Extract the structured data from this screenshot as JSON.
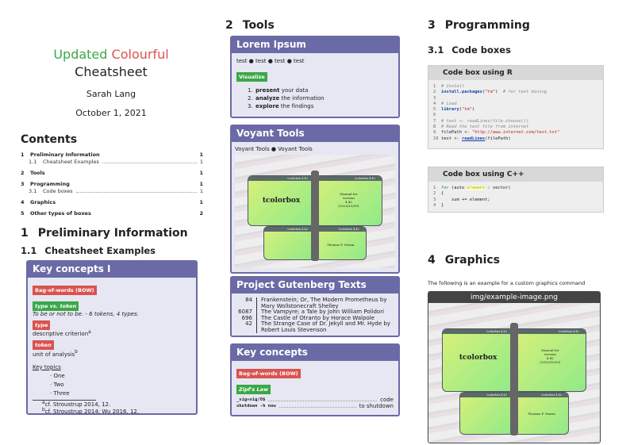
{
  "title": {
    "word1": "Updated",
    "word2": "Colourful",
    "line2": "Cheatsheet",
    "author": "Sarah Lang",
    "date": "October 1, 2021",
    "color1": "#3aa847",
    "color2": "#d9534f"
  },
  "contents": {
    "heading": "Contents",
    "entries": [
      {
        "num": "1",
        "label": "Preliminary Information",
        "page": "1",
        "bold": true
      },
      {
        "num": "1.1",
        "label": "Cheatsheet Examples",
        "page": "1",
        "bold": false
      },
      {
        "num": "2",
        "label": "Tools",
        "page": "1",
        "bold": true
      },
      {
        "num": "3",
        "label": "Programming",
        "page": "1",
        "bold": true
      },
      {
        "num": "3.1",
        "label": "Code boxes",
        "page": "1",
        "bold": false
      },
      {
        "num": "4",
        "label": "Graphics",
        "page": "1",
        "bold": true
      },
      {
        "num": "5",
        "label": "Other types of boxes",
        "page": "2",
        "bold": true
      }
    ]
  },
  "sec1": {
    "num": "1",
    "title": "Preliminary Information",
    "sub_num": "1.1",
    "sub_title": "Cheatsheet Examples"
  },
  "key1": {
    "title": "Key concepts I",
    "tag1": "Bag-of-words (BOW)",
    "tag2": "type vs. token",
    "tag2_text": "To be or not to be. - 6 tokens, 4 types.",
    "tag3": "type",
    "tag3_text": "descriptive criterion",
    "fn_a": "a",
    "tag4": "token",
    "tag4_text": "unit of analysis",
    "fn_b": "b",
    "topics_label": "Key topics",
    "topics": [
      "One",
      "Two",
      "Three"
    ],
    "footnotes": [
      "cf. Stroustrup 2014, 12.",
      "cf. Stroustrup 2014; Wu 2016, 12."
    ]
  },
  "sec2": {
    "num": "2",
    "title": "Tools"
  },
  "lorem": {
    "title": "Lorem Ipsum",
    "items": [
      "test",
      "test",
      "test",
      "test"
    ],
    "button": "Visualize",
    "steps": [
      {
        "n": "1.",
        "b": "present",
        "t": " your data"
      },
      {
        "n": "2.",
        "b": "analyze",
        "t": " the information"
      },
      {
        "n": "3.",
        "b": "explore",
        "t": " the findings"
      }
    ]
  },
  "voyant": {
    "title": "Voyant Tools",
    "items": [
      "Voyant Tools",
      "Voyant Tools"
    ]
  },
  "image": {
    "wing_header": "tcolorbox 4.42",
    "name": "tcolorbox",
    "manual": [
      "Manual for",
      "version",
      "4.42",
      "(2020/10/09)"
    ],
    "author": "Thomas F. Sturm"
  },
  "gutenberg": {
    "title": "Project Gutenberg Texts",
    "rows": [
      {
        "id": "84",
        "text": "Frankenstein; Or, The Modern Prometheus by Mary Wollstonecraft Shelley"
      },
      {
        "id": "6087",
        "text": "The Vampyre; a Tale by John William Polidori"
      },
      {
        "id": "696",
        "text": "The Castle of Otranto by Horace Walpole"
      },
      {
        "id": "42",
        "text": "The Strange Case of Dr. Jekyll and Mr. Hyde by Robert Louis Stevenson"
      }
    ]
  },
  "key2": {
    "title": "Key concepts",
    "tag1": "Bag-of-words (BOW)",
    "tag2": "Zipf's Law",
    "rows": [
      {
        "k": "_sig+sig/O$",
        "v": "code"
      },
      {
        "k": "shutdown -h now",
        "v": "to shutdown"
      }
    ]
  },
  "sec3": {
    "num": "3",
    "title": "Programming",
    "sub_num": "3.1",
    "sub_title": "Code boxes"
  },
  "coder": {
    "title": "Code box using R"
  },
  "codecpp": {
    "title": "Code box using C++"
  },
  "sec4": {
    "num": "4",
    "title": "Graphics",
    "text": "The following is an example for a custom graphics command",
    "img_title": "img/example-image.png"
  }
}
